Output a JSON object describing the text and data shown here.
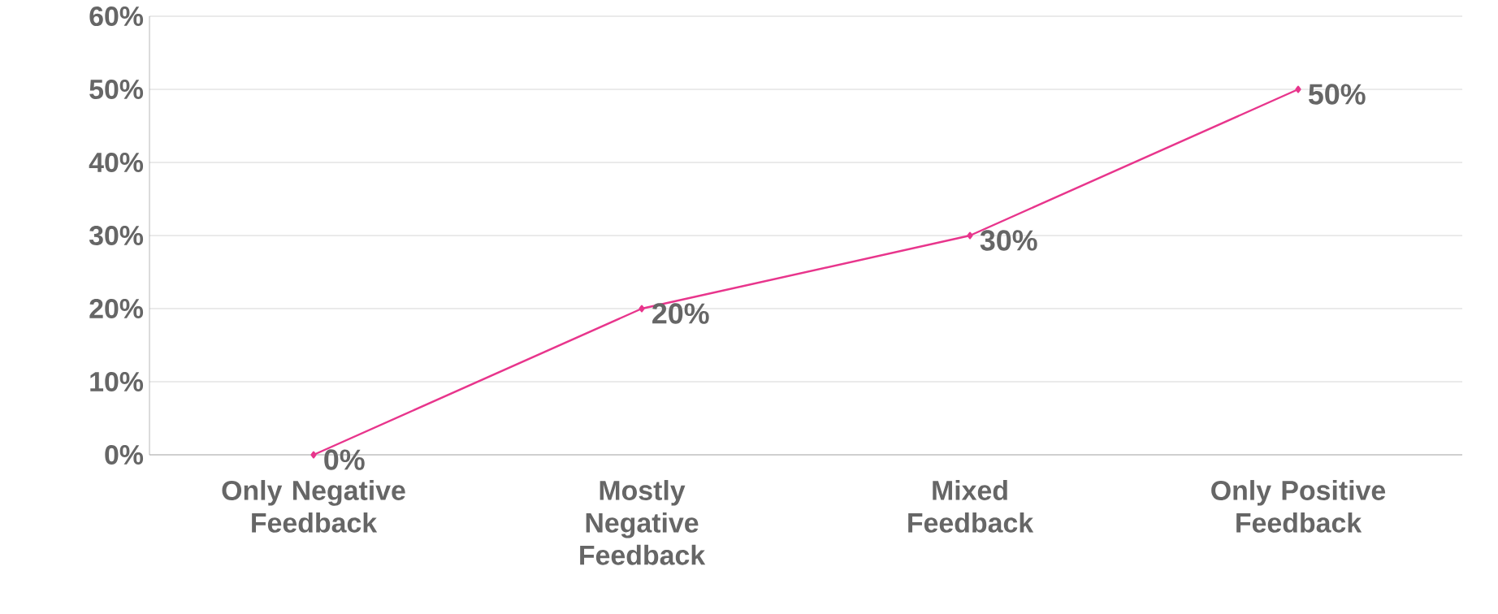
{
  "chart_data": {
    "type": "line",
    "categories": [
      "Only Negative Feedback",
      "Mostly Negative Feedback",
      "Mixed Feedback",
      "Only Positive Feedback"
    ],
    "series": [
      {
        "color": "#e8358c",
        "values": [
          0,
          20,
          30,
          50
        ],
        "value_labels": [
          "0%",
          "20%",
          "30%",
          "50%"
        ]
      }
    ],
    "ylim": [
      0,
      60
    ],
    "yticks": [
      {
        "value": 0,
        "label": "0%"
      },
      {
        "value": 10,
        "label": "10%"
      },
      {
        "value": 20,
        "label": "20%"
      },
      {
        "value": 30,
        "label": "30%"
      },
      {
        "value": 40,
        "label": "40%"
      },
      {
        "value": 50,
        "label": "50%"
      },
      {
        "value": 60,
        "label": "60%"
      }
    ],
    "grid": "y",
    "marker": "diamond",
    "line_style": "solid"
  }
}
